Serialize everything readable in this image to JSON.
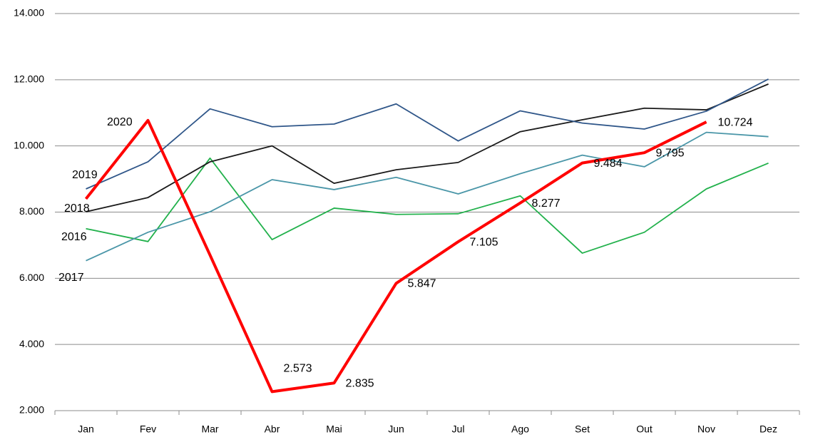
{
  "chart_data": {
    "type": "line",
    "categories": [
      "Jan",
      "Fev",
      "Mar",
      "Abr",
      "Mai",
      "Jun",
      "Jul",
      "Ago",
      "Set",
      "Out",
      "Nov",
      "Dez"
    ],
    "ylim": [
      2000,
      14000
    ],
    "yticks": [
      {
        "value": 2000,
        "label": "2.000"
      },
      {
        "value": 4000,
        "label": "4.000"
      },
      {
        "value": 6000,
        "label": "6.000"
      },
      {
        "value": 8000,
        "label": "8.000"
      },
      {
        "value": 10000,
        "label": "10.000"
      },
      {
        "value": 12000,
        "label": "12.000"
      },
      {
        "value": 14000,
        "label": "14.000"
      }
    ],
    "grid": true,
    "series": [
      {
        "name": "2016",
        "color": "#22b14c",
        "values": [
          7500,
          7110,
          9630,
          7170,
          8120,
          7930,
          7950,
          8490,
          6760,
          7390,
          8700,
          9480
        ]
      },
      {
        "name": "2017",
        "color": "#4a96a8",
        "values": [
          6530,
          7390,
          8010,
          8980,
          8680,
          9050,
          8550,
          9160,
          9720,
          9370,
          10410,
          10280
        ]
      },
      {
        "name": "2018",
        "color": "#1a1a1a",
        "values": [
          8010,
          8440,
          9520,
          10000,
          8870,
          9280,
          9500,
          10430,
          10790,
          11140,
          11090,
          11870
        ]
      },
      {
        "name": "2019",
        "color": "#2f5689",
        "values": [
          8700,
          9520,
          11120,
          10580,
          10660,
          11270,
          10150,
          11060,
          10690,
          10510,
          11050,
          12020
        ]
      },
      {
        "name": "2020",
        "color": "#ff0000",
        "values": [
          8400,
          10770,
          6700,
          2573,
          2835,
          5847,
          7105,
          8277,
          9484,
          9795,
          10724,
          null
        ],
        "value_labels": [
          null,
          null,
          null,
          "2.573",
          "2.835",
          "5.847",
          "7.105",
          "8.277",
          "9.484",
          "9.795",
          "10.724",
          null
        ]
      }
    ]
  }
}
